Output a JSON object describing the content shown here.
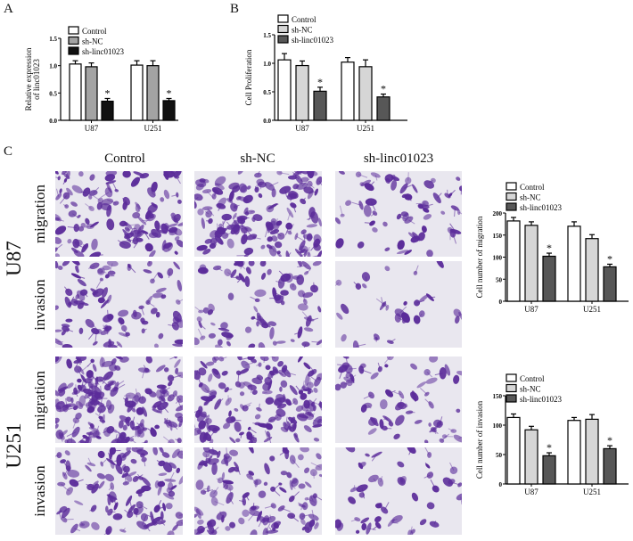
{
  "panels": {
    "a": "A",
    "b": "B",
    "c": "C"
  },
  "micrographs": {
    "columns": [
      "Control",
      "sh-NC",
      "sh-linc01023"
    ],
    "cell_lines": [
      "U87",
      "U251"
    ],
    "assays": [
      "migration",
      "invasion"
    ]
  },
  "colors": {
    "stain": "#5b2c9a",
    "background": "#e9e7ef"
  },
  "chart_data": [
    {
      "id": "A",
      "type": "bar",
      "ylabel": [
        "Relative expression",
        "of linc01023"
      ],
      "categories": [
        "U87",
        "U251"
      ],
      "ylim": [
        0,
        1.5
      ],
      "yticks": [
        "0.0",
        "0.5",
        "1.0",
        "1.5"
      ],
      "tick_values": [
        0,
        0.5,
        1.0,
        1.5
      ],
      "series": [
        {
          "name": "Control",
          "values": [
            1.03,
            1.01
          ],
          "errors": [
            0.06,
            0.08
          ],
          "color": "#ffffff"
        },
        {
          "name": "sh-NC",
          "values": [
            0.98,
            1.0
          ],
          "errors": [
            0.07,
            0.09
          ],
          "color": "#a3a3a3"
        },
        {
          "name": "sh-linc01023",
          "values": [
            0.35,
            0.36
          ],
          "errors": [
            0.05,
            0.04
          ],
          "color": "#111111",
          "significance": [
            "*",
            "*"
          ]
        }
      ],
      "legend": "top-left"
    },
    {
      "id": "B",
      "type": "bar",
      "ylabel": [
        "Cell Proliferation"
      ],
      "categories": [
        "U87",
        "U251"
      ],
      "ylim": [
        0,
        1.5
      ],
      "yticks": [
        "0.0",
        "0.5",
        "1.0",
        "1.5"
      ],
      "tick_values": [
        0,
        0.5,
        1.0,
        1.5
      ],
      "series": [
        {
          "name": "Control",
          "values": [
            1.06,
            1.02
          ],
          "errors": [
            0.11,
            0.08
          ],
          "color": "#ffffff"
        },
        {
          "name": "sh-NC",
          "values": [
            0.96,
            0.94
          ],
          "errors": [
            0.08,
            0.12
          ],
          "color": "#d6d6d6"
        },
        {
          "name": "sh-linc01023",
          "values": [
            0.51,
            0.41
          ],
          "errors": [
            0.07,
            0.05
          ],
          "color": "#575757",
          "significance": [
            "*",
            "*"
          ]
        }
      ],
      "legend": "top-left"
    },
    {
      "id": "migration",
      "type": "bar",
      "ylabel": [
        "Cell number of migration"
      ],
      "categories": [
        "U87",
        "U251"
      ],
      "ylim": [
        0,
        200
      ],
      "yticks": [
        "0",
        "50",
        "100",
        "150",
        "200"
      ],
      "tick_values": [
        0,
        50,
        100,
        150,
        200
      ],
      "series": [
        {
          "name": "Control",
          "values": [
            182,
            170
          ],
          "errors": [
            8,
            10
          ],
          "color": "#ffffff"
        },
        {
          "name": "sh-NC",
          "values": [
            172,
            142
          ],
          "errors": [
            8,
            9
          ],
          "color": "#d6d6d6"
        },
        {
          "name": "sh-linc01023",
          "values": [
            102,
            78
          ],
          "errors": [
            7,
            6
          ],
          "color": "#575757",
          "significance": [
            "*",
            "*"
          ]
        }
      ],
      "legend": "top-left"
    },
    {
      "id": "invasion",
      "type": "bar",
      "ylabel": [
        "Cell number of invasion"
      ],
      "categories": [
        "U87",
        "U251"
      ],
      "ylim": [
        0,
        150
      ],
      "yticks": [
        "0",
        "50",
        "100",
        "150"
      ],
      "tick_values": [
        0,
        50,
        100,
        150
      ],
      "series": [
        {
          "name": "Control",
          "values": [
            113,
            108
          ],
          "errors": [
            6,
            5
          ],
          "color": "#ffffff"
        },
        {
          "name": "sh-NC",
          "values": [
            92,
            110
          ],
          "errors": [
            6,
            8
          ],
          "color": "#d6d6d6"
        },
        {
          "name": "sh-linc01023",
          "values": [
            48,
            60
          ],
          "errors": [
            5,
            5
          ],
          "color": "#575757",
          "significance": [
            "*",
            "*"
          ]
        }
      ],
      "legend": "top-left"
    }
  ]
}
